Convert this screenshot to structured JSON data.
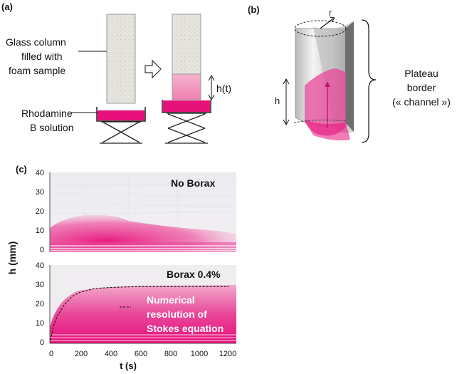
{
  "panel_a": {
    "label": "(a)",
    "column_caption": [
      "Glass column",
      "filled with",
      "foam sample"
    ],
    "solution_caption": [
      "Rhodamine",
      "B solution"
    ],
    "height_label": "h(t)"
  },
  "panel_b": {
    "label": "(b)",
    "radius_label": "r",
    "height_label": "h",
    "caption": [
      "Plateau",
      "border",
      "(« channel »)"
    ]
  },
  "panel_c": {
    "label": "(c)",
    "ylabel": "h (mm)",
    "xlabel": "t  (s)",
    "top_plot_title": "No Borax",
    "bottom_plot_title": "Borax 0.4%",
    "curve_annotation": [
      "Numerical",
      "resolution of",
      "Stokes equation"
    ],
    "top_yticks": [
      "0",
      "10",
      "20",
      "30",
      "40"
    ],
    "bottom_yticks": [
      "0",
      "10",
      "20",
      "30",
      "40"
    ],
    "xticks": [
      "0",
      "200",
      "400",
      "600",
      "800",
      "1000",
      "1200"
    ]
  },
  "colors": {
    "magenta": "#e8107a",
    "pink_foam": "#f28cb8",
    "foam_gray": "#e2e0dc"
  },
  "chart_data": {
    "type": "line",
    "xlabel": "t  (s)",
    "ylabel": "h (mm)",
    "xlim": [
      0,
      1250
    ],
    "ylim": [
      0,
      40
    ],
    "series": [
      {
        "name": "Numerical resolution of Stokes equation",
        "x": [
          0,
          25,
          50,
          100,
          150,
          200,
          300,
          400,
          500,
          600,
          800,
          1000,
          1200
        ],
        "y": [
          0,
          9,
          14,
          20,
          24,
          26,
          28,
          28.5,
          28.8,
          29,
          29,
          29,
          29
        ]
      }
    ]
  }
}
